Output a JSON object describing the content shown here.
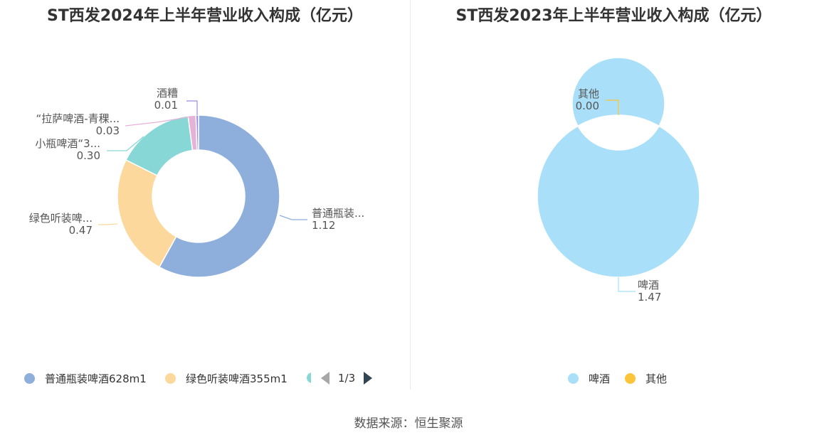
{
  "source_text": "数据来源：恒生聚源",
  "chart_data": [
    {
      "type": "pie",
      "variant": "donut",
      "title": "ST西发2024年上半年营业收入构成（亿元）",
      "unit": "亿元",
      "slices": [
        {
          "name": "普通瓶装啤酒628m1",
          "label": "普通瓶装...",
          "value": 1.12,
          "color": "#8eaedb"
        },
        {
          "name": "绿色听装啤酒355m1",
          "label": "绿色听装啤...",
          "value": 0.47,
          "color": "#fdd89d"
        },
        {
          "name": "小瓶啤酒“3...",
          "label": "小瓶啤酒“3...",
          "value": 0.3,
          "color": "#87d7d7"
        },
        {
          "name": "“拉萨啤酒-青稞...",
          "label": "“拉萨啤酒-青稞...",
          "value": 0.03,
          "color": "#e6b3d8"
        },
        {
          "name": "酒糟",
          "label": "酒糟",
          "value": 0.01,
          "color": "#9a8ee0"
        }
      ],
      "legend": {
        "placement": "bottom",
        "visible_items": [
          "普通瓶装啤酒628m1",
          "绿色听装啤酒355m1"
        ],
        "page": "1/3"
      }
    },
    {
      "type": "pie",
      "variant": "donut",
      "title": "ST西发2023年上半年营业收入构成（亿元）",
      "unit": "亿元",
      "slices": [
        {
          "name": "啤酒",
          "label": "啤酒",
          "value": 1.47,
          "color": "#a9dff8"
        },
        {
          "name": "其他",
          "label": "其他",
          "value": 0.0,
          "color": "#fbc53b"
        }
      ],
      "legend": {
        "placement": "bottom",
        "visible_items": [
          "啤酒",
          "其他"
        ]
      }
    }
  ]
}
